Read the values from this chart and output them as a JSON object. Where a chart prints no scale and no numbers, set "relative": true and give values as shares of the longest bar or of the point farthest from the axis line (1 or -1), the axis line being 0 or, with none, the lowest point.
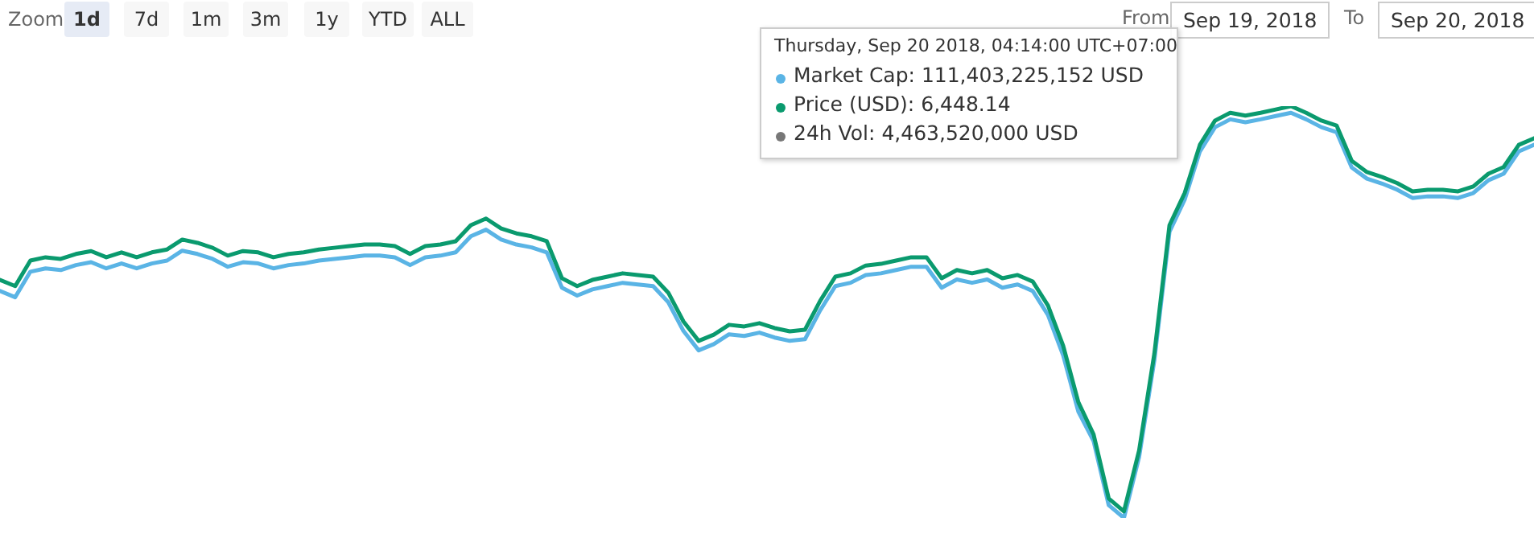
{
  "chart_data": {
    "type": "line",
    "relative": true,
    "line_style": "solid",
    "categories": [
      null,
      null,
      null,
      null,
      null,
      null,
      null,
      null,
      null,
      null,
      null,
      null,
      null,
      null,
      null,
      null,
      null,
      null,
      null,
      null,
      null,
      null,
      null,
      null,
      null,
      null,
      null,
      null,
      null,
      null,
      null,
      null,
      null,
      null,
      null,
      null,
      null,
      null,
      null,
      null,
      null,
      null,
      null,
      null,
      null,
      null,
      null,
      null,
      null,
      null,
      null,
      null,
      null,
      null,
      null,
      null,
      null,
      null,
      null,
      null,
      null,
      null,
      null,
      null,
      null,
      null,
      null,
      null,
      null,
      null,
      null,
      null,
      null,
      null,
      null,
      null,
      null,
      null,
      null,
      null,
      null,
      null,
      null,
      null,
      null,
      null,
      null,
      null,
      null,
      null,
      null,
      null,
      null,
      null,
      null,
      null,
      null,
      null,
      null,
      null,
      null,
      null
    ],
    "series": [
      {
        "color": "#5ab4e5",
        "values": [
          0.551,
          0.536,
          0.598,
          0.606,
          0.602,
          0.614,
          0.621,
          0.606,
          0.618,
          0.606,
          0.618,
          0.625,
          0.649,
          0.641,
          0.629,
          0.61,
          0.621,
          0.618,
          0.606,
          0.614,
          0.618,
          0.625,
          0.629,
          0.633,
          0.637,
          0.637,
          0.633,
          0.614,
          0.633,
          0.637,
          0.645,
          0.684,
          0.7,
          0.676,
          0.664,
          0.657,
          0.645,
          0.559,
          0.54,
          0.555,
          0.563,
          0.571,
          0.567,
          0.563,
          0.524,
          0.454,
          0.407,
          0.422,
          0.446,
          0.442,
          0.45,
          0.438,
          0.43,
          0.434,
          0.504,
          0.563,
          0.571,
          0.59,
          0.594,
          0.602,
          0.61,
          0.61,
          0.559,
          0.579,
          0.571,
          0.579,
          0.559,
          0.567,
          0.551,
          0.493,
          0.395,
          0.258,
          0.187,
          0.031,
          0,
          0.148,
          0.382,
          0.695,
          0.773,
          0.89,
          0.949,
          0.968,
          0.961,
          0.968,
          0.976,
          0.984,
          0.968,
          0.949,
          0.937,
          0.851,
          0.824,
          0.812,
          0.797,
          0.777,
          0.781,
          0.781,
          0.777,
          0.789,
          0.82,
          0.836,
          0.89,
          0.906
        ]
      },
      {
        "color": "#0a9a6e",
        "values": [
          0.578,
          0.563,
          0.625,
          0.633,
          0.629,
          0.641,
          0.648,
          0.633,
          0.645,
          0.633,
          0.645,
          0.652,
          0.676,
          0.668,
          0.656,
          0.637,
          0.648,
          0.645,
          0.633,
          0.641,
          0.645,
          0.652,
          0.656,
          0.66,
          0.664,
          0.664,
          0.66,
          0.641,
          0.66,
          0.664,
          0.672,
          0.711,
          0.727,
          0.703,
          0.691,
          0.684,
          0.672,
          0.582,
          0.563,
          0.578,
          0.586,
          0.594,
          0.59,
          0.586,
          0.547,
          0.477,
          0.43,
          0.445,
          0.469,
          0.465,
          0.473,
          0.461,
          0.453,
          0.457,
          0.527,
          0.586,
          0.594,
          0.613,
          0.617,
          0.625,
          0.633,
          0.633,
          0.582,
          0.602,
          0.594,
          0.602,
          0.582,
          0.59,
          0.574,
          0.516,
          0.418,
          0.281,
          0.203,
          0.047,
          0.016,
          0.164,
          0.398,
          0.711,
          0.789,
          0.906,
          0.965,
          0.984,
          0.977,
          0.984,
          0.992,
          1,
          0.984,
          0.965,
          0.953,
          0.867,
          0.84,
          0.828,
          0.813,
          0.793,
          0.797,
          0.797,
          0.793,
          0.805,
          0.836,
          0.852,
          0.906,
          0.922
        ]
      }
    ],
    "annotations": [
      "Zoom",
      "1d",
      "7d",
      "1m",
      "3m",
      "1y",
      "YTD",
      "ALL",
      "From",
      "Sep 19, 2018",
      "To",
      "Sep 20, 2018",
      "Thursday, Sep 20 2018, 04:14:00 UTC+07:00",
      "Market Cap: 111,403,225,152 USD",
      "Price (USD): 6,448.14",
      "24h Vol: 4,463,520,000 USD"
    ]
  }
}
